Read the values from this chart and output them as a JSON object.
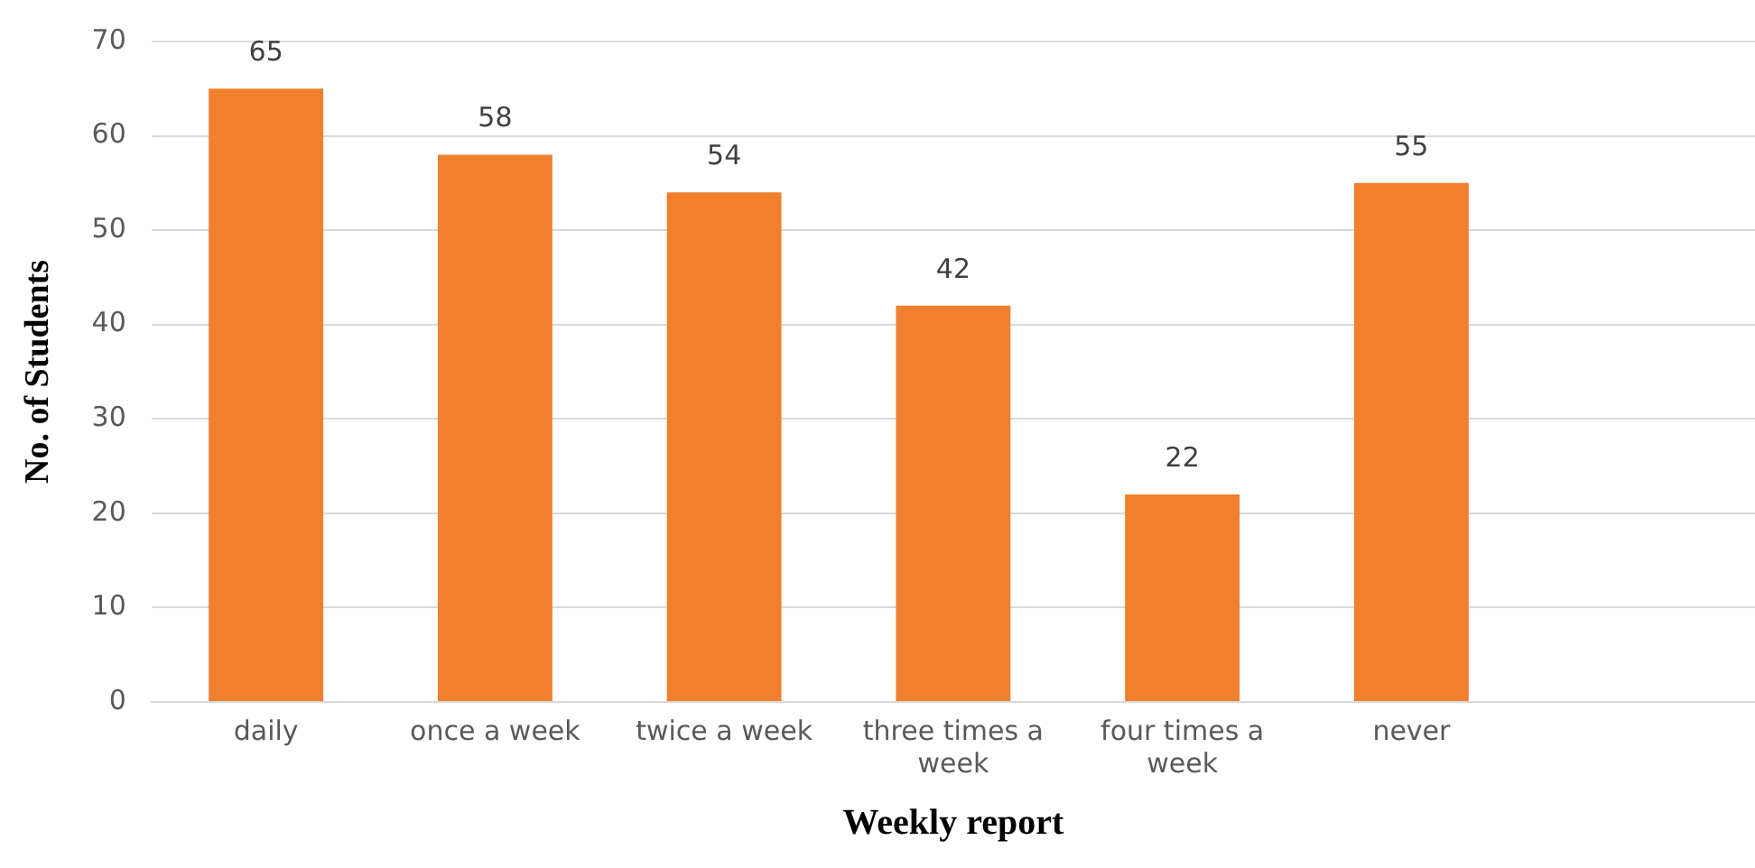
{
  "chart_data": {
    "type": "bar",
    "xlabel": "Weekly report",
    "ylabel": "No. of Students",
    "categories": [
      "daily",
      "once a week",
      "twice a week",
      "three times a week",
      "four times a week",
      "never",
      null
    ],
    "values": [
      65,
      58,
      54,
      42,
      22,
      55,
      null
    ],
    "color": "#f07f2e",
    "ylim": [
      0,
      70
    ],
    "yticks": [
      0,
      10,
      20,
      30,
      40,
      50,
      60,
      70
    ],
    "grid": "y",
    "data_labels": true
  }
}
